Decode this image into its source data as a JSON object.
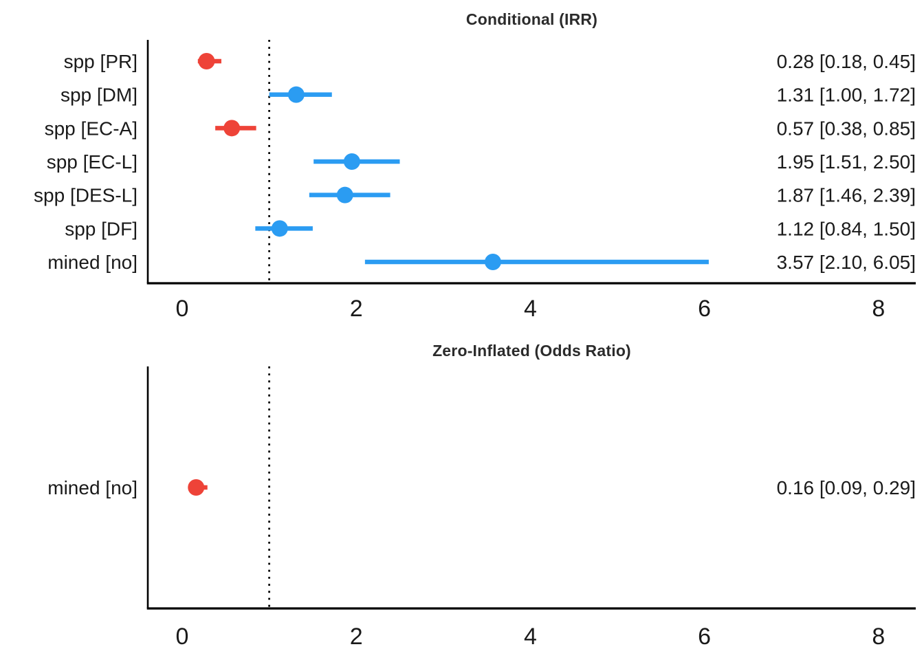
{
  "colors": {
    "red": "#ee4338",
    "blue": "#2b9cf2",
    "axis": "#000000",
    "text": "#1a1a1a",
    "title": "#2b2b2b",
    "background": "#ffffff"
  },
  "chart_data": [
    {
      "type": "forest",
      "title": "Conditional (IRR)",
      "ref_line": 1,
      "x_ticks": [
        0,
        2,
        4,
        6,
        8
      ],
      "x_range": [
        -0.4,
        8.45
      ],
      "grid": false,
      "rows": [
        {
          "label": "spp [PR]",
          "estimate": 0.28,
          "ci_low": 0.18,
          "ci_high": 0.45,
          "display": "0.28 [0.18, 0.45]",
          "tone": "red"
        },
        {
          "label": "spp [DM]",
          "estimate": 1.31,
          "ci_low": 1.0,
          "ci_high": 1.72,
          "display": "1.31 [1.00, 1.72]",
          "tone": "blue"
        },
        {
          "label": "spp [EC-A]",
          "estimate": 0.57,
          "ci_low": 0.38,
          "ci_high": 0.85,
          "display": "0.57 [0.38, 0.85]",
          "tone": "red"
        },
        {
          "label": "spp [EC-L]",
          "estimate": 1.95,
          "ci_low": 1.51,
          "ci_high": 2.5,
          "display": "1.95 [1.51, 2.50]",
          "tone": "blue"
        },
        {
          "label": "spp [DES-L]",
          "estimate": 1.87,
          "ci_low": 1.46,
          "ci_high": 2.39,
          "display": "1.87 [1.46, 2.39]",
          "tone": "blue"
        },
        {
          "label": "spp [DF]",
          "estimate": 1.12,
          "ci_low": 0.84,
          "ci_high": 1.5,
          "display": "1.12 [0.84, 1.50]",
          "tone": "blue"
        },
        {
          "label": "mined [no]",
          "estimate": 3.57,
          "ci_low": 2.1,
          "ci_high": 6.05,
          "display": "3.57 [2.10, 6.05]",
          "tone": "blue"
        }
      ]
    },
    {
      "type": "forest",
      "title": "Zero-Inflated (Odds Ratio)",
      "ref_line": 1,
      "x_ticks": [
        0,
        2,
        4,
        6,
        8
      ],
      "x_range": [
        -0.4,
        8.45
      ],
      "grid": false,
      "rows": [
        {
          "label": "mined [no]",
          "estimate": 0.16,
          "ci_low": 0.09,
          "ci_high": 0.29,
          "display": "0.16 [0.09, 0.29]",
          "tone": "red"
        }
      ]
    }
  ]
}
